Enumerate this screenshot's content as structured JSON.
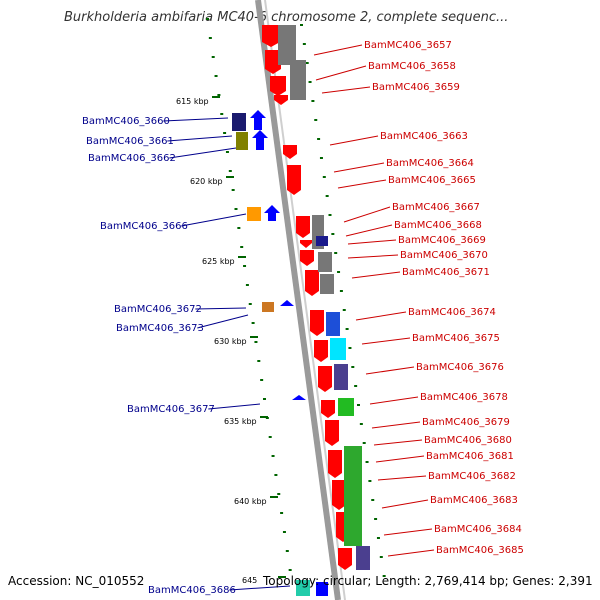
{
  "title": "Burkholderia ambifaria MC40-6 chromosome 2, complete sequenc...",
  "footer": {
    "accession": "Accession: NC_010552",
    "topology": "Topology: circular; Length: 2,769,414 bp; Genes: 2,391"
  },
  "ticks": [
    "615 kbp",
    "620 kbp",
    "625 kbp",
    "630 kbp",
    "635 kbp",
    "640 kbp",
    "645"
  ],
  "genes_left": [
    "BamMC406_3660",
    "BamMC406_3661",
    "BamMC406_3662",
    "BamMC406_3666",
    "BamMC406_3672",
    "BamMC406_3673",
    "BamMC406_3677",
    "BamMC406_3686"
  ],
  "genes_right": [
    "BamMC406_3657",
    "BamMC406_3658",
    "BamMC406_3659",
    "BamMC406_3663",
    "BamMC406_3664",
    "BamMC406_3665",
    "BamMC406_3667",
    "BamMC406_3668",
    "BamMC406_3669",
    "BamMC406_3670",
    "BamMC406_3671",
    "BamMC406_3674",
    "BamMC406_3675",
    "BamMC406_3676",
    "BamMC406_3678",
    "BamMC406_3679",
    "BamMC406_3680",
    "BamMC406_3681",
    "BamMC406_3682",
    "BamMC406_3683",
    "BamMC406_3684",
    "BamMC406_3685"
  ],
  "colors": {
    "forward": "#ff0000",
    "reverse": "#0000ff",
    "left_label": "#00008b",
    "right_label": "#cc0000",
    "backbone": "#808080",
    "tick": "#006400"
  }
}
